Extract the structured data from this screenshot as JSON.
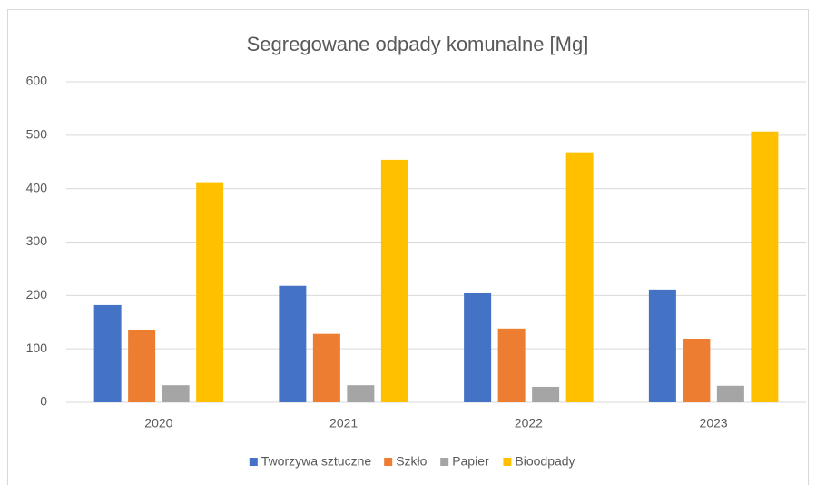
{
  "chart_data": {
    "type": "bar",
    "title": "Segregowane odpady komunalne [Mg]",
    "categories": [
      "2020",
      "2021",
      "2022",
      "2023"
    ],
    "series": [
      {
        "name": "Tworzywa sztuczne",
        "color": "#4472c4",
        "values": [
          182,
          218,
          204,
          211
        ]
      },
      {
        "name": "Szkło",
        "color": "#ed7d31",
        "values": [
          136,
          128,
          138,
          119
        ]
      },
      {
        "name": "Papier",
        "color": "#a5a5a5",
        "values": [
          32,
          32,
          29,
          31
        ]
      },
      {
        "name": "Bioodpady",
        "color": "#ffc000",
        "values": [
          412,
          454,
          468,
          507
        ]
      }
    ],
    "ylim": [
      0,
      600
    ],
    "yticks": [
      0,
      100,
      200,
      300,
      400,
      500,
      600
    ],
    "grid": true,
    "legend": "bottom"
  }
}
